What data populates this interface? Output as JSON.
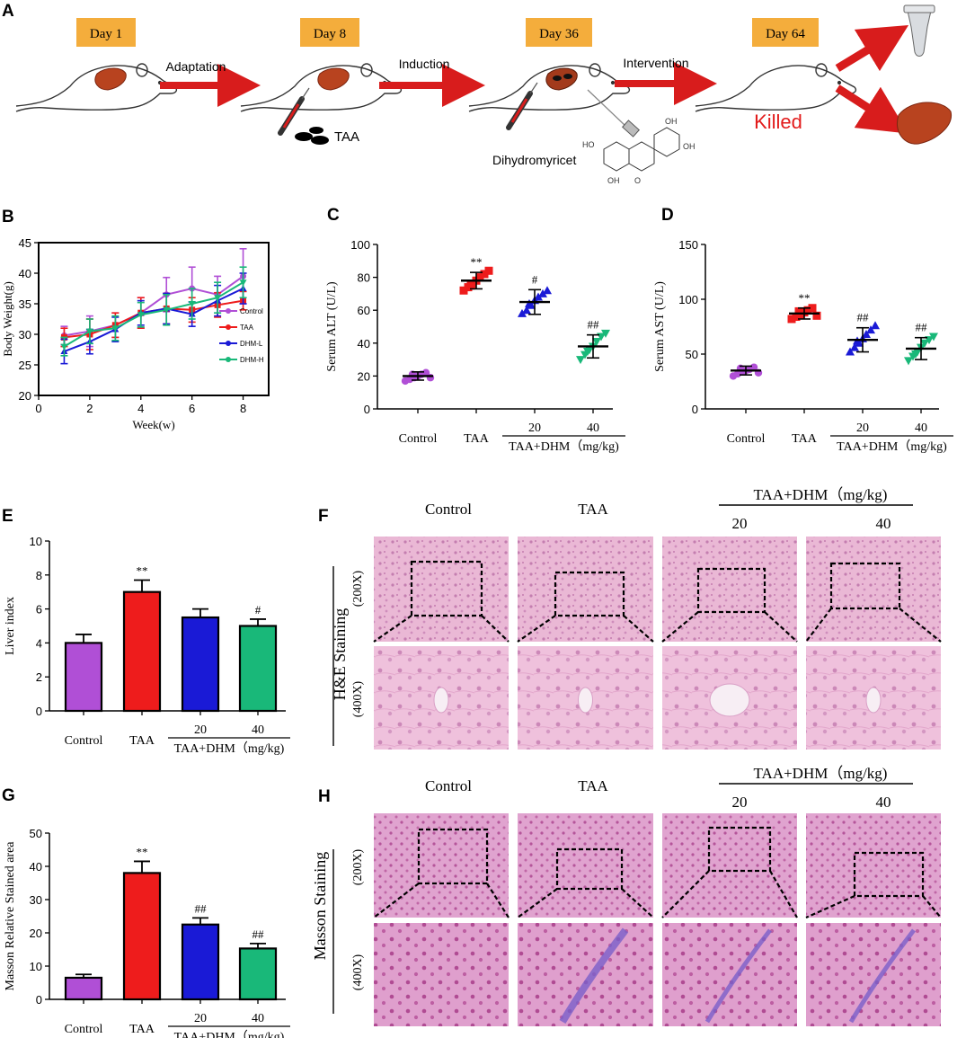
{
  "colors": {
    "control": "#b04fd6",
    "taa": "#ee1c1c",
    "dhm_l": "#1a1ad6",
    "dhm_h": "#19b879",
    "arrow": "#d81c1c",
    "day_box": "#f4ad3c",
    "killed": "#e21b1b",
    "tissue": "#e9b3d4",
    "masson_fiber": "#7a5fc9"
  },
  "panel_a": {
    "letter": "A",
    "timeline": [
      {
        "day": "Day 1",
        "arrow_label": "Adaptation"
      },
      {
        "day": "Day 8",
        "arrow_label": "Induction"
      },
      {
        "day": "Day 36",
        "arrow_label": "Intervention"
      },
      {
        "day": "Day 64",
        "arrow_label": ""
      }
    ],
    "taa_label": "TAA",
    "compound_label": "Dihydromyricet",
    "killed_label": "Killed",
    "icons": [
      "mouse-icon",
      "liver-icon",
      "syringe-icon",
      "pill-icon",
      "molecule-icon",
      "tube-icon"
    ]
  },
  "panel_f": {
    "letter": "F",
    "col_headers": [
      "Control",
      "TAA",
      "20",
      "40"
    ],
    "group_label": "TAA+DHM（mg/kg)",
    "row_label_200": "(200X)",
    "row_label_400": "(400X)",
    "stain_label": "H&E Staining"
  },
  "panel_h": {
    "letter": "H",
    "col_headers": [
      "Control",
      "TAA",
      "20",
      "40"
    ],
    "group_label": "TAA+DHM（mg/kg)",
    "row_label_200": "(200X)",
    "row_label_400": "(400X)",
    "stain_label": "Masson Staining"
  },
  "chart_data": [
    {
      "panel": "B",
      "type": "line",
      "xlabel": "Week(w)",
      "ylabel": "Body Weight(g)",
      "xlim": [
        0,
        9
      ],
      "ylim": [
        20,
        45
      ],
      "xticks": [
        0,
        2,
        4,
        6,
        8
      ],
      "yticks": [
        20,
        25,
        30,
        35,
        40,
        45
      ],
      "x": [
        1,
        2,
        3,
        4,
        5,
        6,
        7,
        8
      ],
      "series": [
        {
          "name": "Control",
          "key": "control",
          "values": [
            29.8,
            30.5,
            31.5,
            33.5,
            36.5,
            37.5,
            36.5,
            39.5
          ],
          "err": [
            1.5,
            2.5,
            2.0,
            2.5,
            2.8,
            3.5,
            3.0,
            4.5
          ]
        },
        {
          "name": "TAA",
          "key": "taa",
          "values": [
            29.5,
            30.0,
            31.5,
            33.5,
            34.2,
            34.0,
            34.8,
            35.5
          ],
          "err": [
            1.5,
            2.5,
            2.0,
            2.5,
            2.5,
            2.0,
            2.0,
            1.5
          ]
        },
        {
          "name": "DHM-L",
          "key": "dhm_l",
          "values": [
            27.2,
            28.8,
            30.8,
            33.5,
            34.2,
            33.3,
            35.5,
            37.5
          ],
          "err": [
            2.0,
            2.0,
            2.0,
            2.0,
            2.5,
            2.0,
            2.5,
            2.5
          ]
        },
        {
          "name": "DHM-H",
          "key": "dhm_h",
          "values": [
            28.0,
            30.5,
            31.0,
            33.2,
            34.0,
            35.0,
            36.0,
            38.5
          ],
          "err": [
            1.5,
            2.0,
            2.0,
            2.0,
            2.5,
            2.5,
            2.5,
            2.5
          ]
        }
      ],
      "legend": [
        "Control",
        "TAA",
        "DHM-L",
        "DHM-H"
      ],
      "legend_position": "bottom-right"
    },
    {
      "panel": "C",
      "type": "scatter",
      "ylabel": "Serum ALT (U/L)",
      "ylim": [
        0,
        100
      ],
      "yticks": [
        0,
        20,
        40,
        60,
        80,
        100
      ],
      "categories": [
        "Control",
        "TAA",
        "20",
        "40"
      ],
      "group_label": "TAA+DHM（mg/kg)",
      "groups": [
        {
          "key": "control",
          "marker": "circle",
          "mean": 20,
          "sd": 2.5,
          "points": [
            17,
            18,
            19,
            20,
            21,
            22,
            19,
            21
          ],
          "sig": ""
        },
        {
          "key": "taa",
          "marker": "square",
          "mean": 78,
          "sd": 5,
          "points": [
            72,
            74,
            76,
            78,
            80,
            82,
            84,
            75
          ],
          "sig": "**"
        },
        {
          "key": "dhm_l",
          "marker": "triangle-up",
          "mean": 65,
          "sd": 7.5,
          "points": [
            58,
            60,
            63,
            66,
            68,
            70,
            72,
            64
          ],
          "sig": "#"
        },
        {
          "key": "dhm_h",
          "marker": "triangle-down",
          "mean": 38,
          "sd": 7,
          "points": [
            30,
            33,
            36,
            38,
            41,
            44,
            46,
            35
          ],
          "sig": "##"
        }
      ]
    },
    {
      "panel": "D",
      "type": "scatter",
      "ylabel": "Serum AST (U/L)",
      "ylim": [
        0,
        150
      ],
      "yticks": [
        0,
        50,
        100,
        150
      ],
      "categories": [
        "Control",
        "TAA",
        "20",
        "40"
      ],
      "group_label": "TAA+DHM（mg/kg)",
      "groups": [
        {
          "key": "control",
          "marker": "circle",
          "mean": 35,
          "sd": 4,
          "points": [
            30,
            32,
            34,
            35,
            36,
            38,
            33,
            37
          ],
          "sig": ""
        },
        {
          "key": "taa",
          "marker": "square",
          "mean": 87,
          "sd": 5,
          "points": [
            82,
            84,
            86,
            88,
            90,
            92,
            85,
            89
          ],
          "sig": "**"
        },
        {
          "key": "dhm_l",
          "marker": "triangle-up",
          "mean": 63,
          "sd": 11,
          "points": [
            52,
            56,
            60,
            64,
            68,
            72,
            76,
            62
          ],
          "sig": "##"
        },
        {
          "key": "dhm_h",
          "marker": "triangle-down",
          "mean": 55,
          "sd": 10,
          "points": [
            44,
            48,
            52,
            56,
            60,
            63,
            66,
            50
          ],
          "sig": "##"
        }
      ]
    },
    {
      "panel": "E",
      "type": "bar",
      "ylabel": "Liver index",
      "ylim": [
        0,
        10
      ],
      "yticks": [
        0,
        2,
        4,
        6,
        8,
        10
      ],
      "categories": [
        "Control",
        "TAA",
        "20",
        "40"
      ],
      "group_label": "TAA+DHM（mg/kg)",
      "values": [
        4.0,
        7.0,
        5.5,
        5.0
      ],
      "err": [
        0.5,
        0.7,
        0.5,
        0.4
      ],
      "sig": [
        "",
        "**",
        "",
        "#"
      ],
      "keys": [
        "control",
        "taa",
        "dhm_l",
        "dhm_h"
      ]
    },
    {
      "panel": "G",
      "type": "bar",
      "ylabel": "Masson Relative Stained area",
      "ylim": [
        0,
        50
      ],
      "yticks": [
        0,
        10,
        20,
        30,
        40,
        50
      ],
      "categories": [
        "Control",
        "TAA",
        "20",
        "40"
      ],
      "group_label": "TAA+DHM（mg/kg)",
      "values": [
        6.5,
        38.0,
        22.5,
        15.3
      ],
      "err": [
        1.0,
        3.5,
        2.0,
        1.5
      ],
      "sig": [
        "",
        "**",
        "##",
        "##"
      ],
      "keys": [
        "control",
        "taa",
        "dhm_l",
        "dhm_h"
      ]
    }
  ]
}
